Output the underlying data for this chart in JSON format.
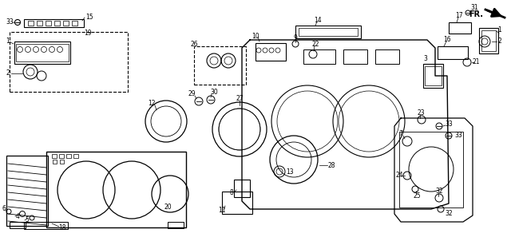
{
  "background_color": "#ffffff",
  "line_color": "#000000"
}
